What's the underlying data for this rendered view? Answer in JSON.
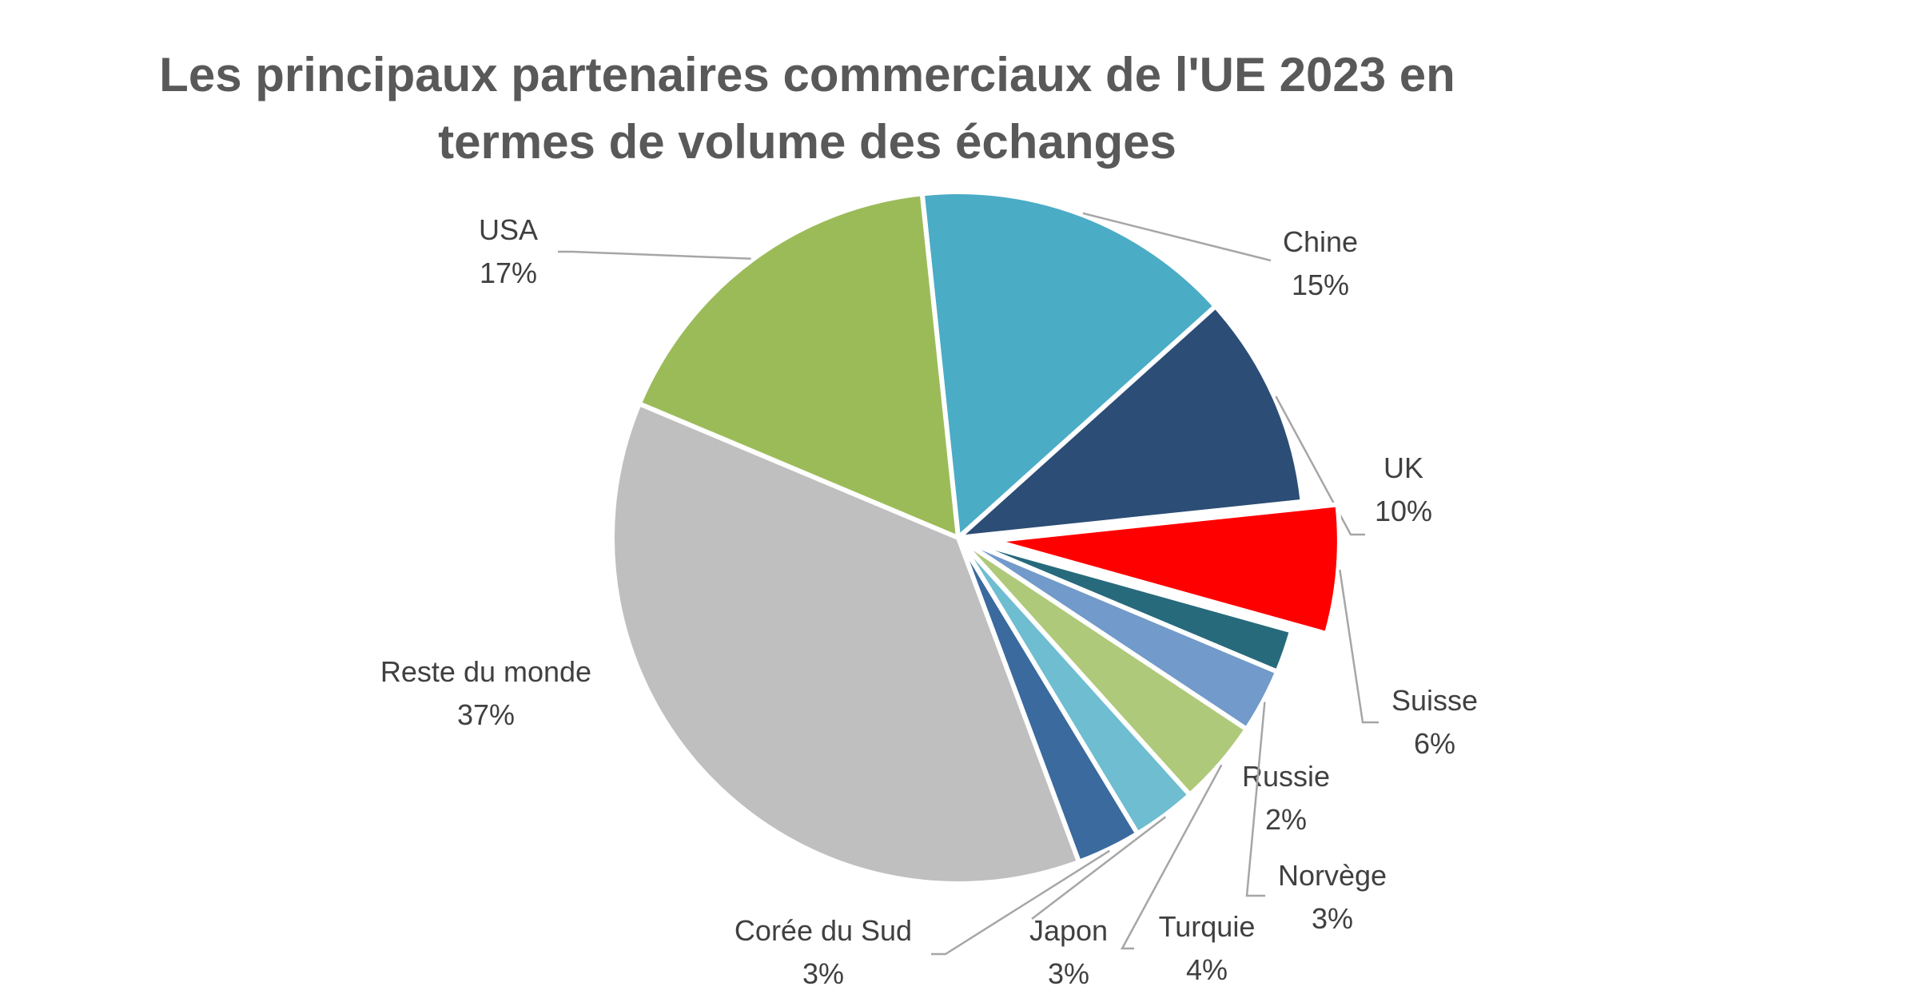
{
  "chart_data": {
    "type": "pie",
    "title_lines": [
      "Les principaux partenaires commerciaux de l'UE 2023 en",
      "termes de volume des échanges"
    ],
    "slices": [
      {
        "name": "Chine",
        "value": 15,
        "label": "15%",
        "color": "#4BACC6"
      },
      {
        "name": "UK",
        "value": 10,
        "label": "10%",
        "color": "#2C4D75"
      },
      {
        "name": "Suisse",
        "value": 6,
        "label": "6%",
        "color": "#FF0000",
        "exploded": true
      },
      {
        "name": "Russie",
        "value": 2,
        "label": "2%",
        "color": "#276A7C"
      },
      {
        "name": "Norvège",
        "value": 3,
        "label": "3%",
        "color": "#729ACA"
      },
      {
        "name": "Turquie",
        "value": 4,
        "label": "4%",
        "color": "#AFC97A"
      },
      {
        "name": "Japon",
        "value": 3,
        "label": "3%",
        "color": "#6FBDD1"
      },
      {
        "name": "Corée du Sud",
        "value": 3,
        "label": "3%",
        "color": "#3A6A9E"
      },
      {
        "name": "Reste du monde",
        "value": 37,
        "label": "37%",
        "color": "#BFBFBF"
      },
      {
        "name": "USA",
        "value": 17,
        "label": "17%",
        "color": "#9BBB59"
      }
    ],
    "legend": "none",
    "data_labels": "outside-with-leader-lines"
  }
}
